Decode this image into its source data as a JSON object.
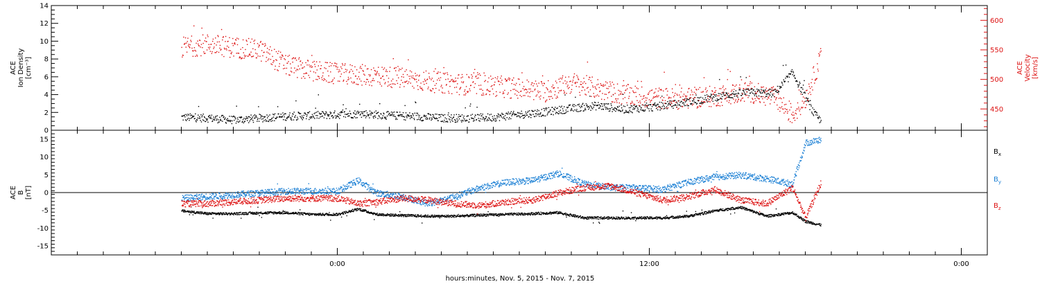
{
  "chart_data": [
    {
      "type": "scatter",
      "ylabel_lines": [
        "ACE",
        "Ion Density",
        "[cm⁻³]"
      ],
      "y2label_lines": [
        "ACE",
        "Velocity",
        "[km/s]"
      ],
      "ylim": [
        0,
        14
      ],
      "y2lim": [
        414,
        625
      ],
      "yticks": [
        0,
        2,
        4,
        6,
        8,
        10,
        12,
        14
      ],
      "y2ticks": [
        450,
        500,
        550,
        600
      ],
      "series": [
        {
          "color": "#000000",
          "axis": "left",
          "x_hours": [
            -6,
            -5,
            -4,
            -3,
            -2,
            -1,
            0,
            1,
            2,
            3,
            4,
            5,
            6,
            7,
            8,
            9,
            10,
            11,
            12,
            13,
            14,
            15,
            15.8,
            16.8,
            17.5,
            18.3,
            18.6
          ],
          "y": [
            1.5,
            1.4,
            1.2,
            1.4,
            1.6,
            1.7,
            1.8,
            1.9,
            1.7,
            1.6,
            1.4,
            1.4,
            1.5,
            1.8,
            2.1,
            2.5,
            2.8,
            2.4,
            2.6,
            3.0,
            3.5,
            4.0,
            4.3,
            4.2,
            6.5,
            2.0,
            1.0
          ]
        },
        {
          "color": "#dd1111",
          "axis": "right",
          "x_hours": [
            -6,
            -5,
            -4,
            -3,
            -2,
            -1,
            0,
            1,
            2,
            3,
            4,
            5,
            6,
            7,
            8,
            9,
            10,
            11,
            12,
            13,
            14,
            15,
            15.8,
            16.8,
            17.5,
            18.0,
            18.6
          ],
          "y": [
            555,
            560,
            555,
            550,
            525,
            515,
            510,
            508,
            505,
            500,
            495,
            492,
            490,
            485,
            480,
            495,
            485,
            475,
            470,
            468,
            470,
            475,
            480,
            470,
            440,
            470,
            540
          ]
        }
      ]
    },
    {
      "type": "scatter",
      "ylabel_lines": [
        "ACE",
        "B",
        "[nT]"
      ],
      "ylim": [
        -17.5,
        17.5
      ],
      "yticks": [
        -15,
        -10,
        -5,
        0,
        5,
        10,
        15
      ],
      "zero_line": true,
      "legend": [
        {
          "label": "B",
          "sub": "x",
          "color": "#000000"
        },
        {
          "label": "B",
          "sub": "y",
          "color": "#1a7fd4"
        },
        {
          "label": "B",
          "sub": "z",
          "color": "#dd1111"
        }
      ],
      "series": [
        {
          "name": "Bx",
          "color": "#000000",
          "x_hours": [
            -6,
            -5,
            -4,
            -3,
            -2,
            -1,
            0,
            0.8,
            1.5,
            2.5,
            3.5,
            4.5,
            5.5,
            6.5,
            7.5,
            8.5,
            9.5,
            10.5,
            11.5,
            12.5,
            13.5,
            14.5,
            15.5,
            16.5,
            17.5,
            18.0,
            18.6
          ],
          "y": [
            -5.0,
            -5.8,
            -5.8,
            -5.6,
            -5.5,
            -6.0,
            -6.0,
            -4.5,
            -6.0,
            -6.3,
            -6.5,
            -6.5,
            -6.2,
            -6.0,
            -5.8,
            -5.5,
            -7.0,
            -7.0,
            -7.0,
            -7.0,
            -6.5,
            -5.0,
            -4.0,
            -6.5,
            -5.5,
            -8.0,
            -9.0
          ]
        },
        {
          "name": "By",
          "color": "#1a7fd4",
          "x_hours": [
            -6,
            -5,
            -4,
            -3,
            -2,
            -1,
            0,
            0.8,
            1.5,
            2.5,
            3.5,
            4.5,
            5.5,
            6.5,
            7.5,
            8.5,
            9.5,
            10.5,
            11.5,
            12.5,
            13.5,
            14.5,
            15.5,
            16.5,
            17.5,
            18.0,
            18.6
          ],
          "y": [
            -1.5,
            -1.0,
            -0.5,
            0.0,
            0.5,
            0.5,
            0.5,
            3.5,
            0.0,
            -1.0,
            -3.0,
            -1.0,
            1.5,
            3.0,
            3.5,
            5.5,
            2.5,
            1.5,
            1.5,
            1.0,
            3.0,
            4.5,
            5.0,
            4.0,
            2.5,
            14.0,
            15.0
          ]
        },
        {
          "name": "Bz",
          "color": "#dd1111",
          "x_hours": [
            -6,
            -5,
            -4,
            -3,
            -2,
            -1,
            0,
            0.8,
            1.5,
            2.5,
            3.5,
            4.5,
            5.5,
            6.5,
            7.5,
            8.5,
            9.5,
            10.5,
            11.5,
            12.5,
            13.5,
            14.5,
            15.5,
            16.5,
            17.5,
            18.0,
            18.6
          ],
          "y": [
            -3.0,
            -3.0,
            -2.5,
            -2.0,
            -1.5,
            -1.5,
            -1.5,
            -3.0,
            -2.5,
            -1.5,
            -2.0,
            -3.0,
            -3.5,
            -2.5,
            -2.0,
            0.0,
            1.5,
            2.0,
            0.0,
            -2.0,
            -1.0,
            1.0,
            -2.0,
            -3.0,
            1.5,
            -7.0,
            3.0
          ]
        }
      ]
    }
  ],
  "x_axis": {
    "xlim_hours": [
      -11,
      25
    ],
    "major_ticks_hours": [
      0,
      12,
      24
    ],
    "tick_labels": [
      "0:00",
      "12:00",
      "0:00"
    ],
    "xlabel": "hours:minutes, Nov.  5, 2015 - Nov.  7, 2015"
  }
}
